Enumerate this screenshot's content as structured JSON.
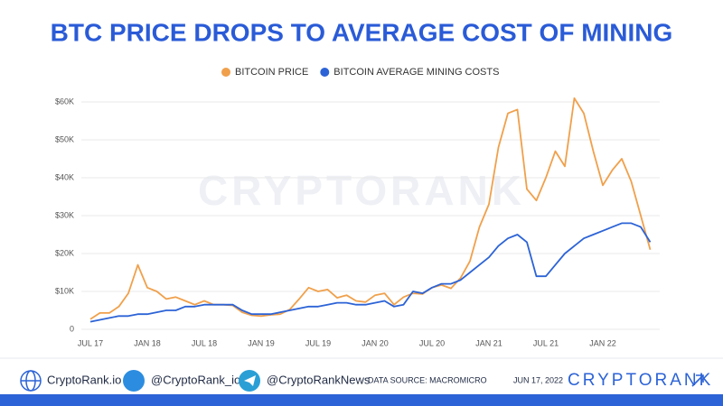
{
  "chart_data": {
    "type": "line",
    "title": "BTC PRICE DROPS TO AVERAGE COST OF MINING",
    "watermark": "CRYPTORANK",
    "x": [
      "2017-07",
      "2017-08",
      "2017-09",
      "2017-10",
      "2017-11",
      "2017-12",
      "2018-01",
      "2018-02",
      "2018-03",
      "2018-04",
      "2018-05",
      "2018-06",
      "2018-07",
      "2018-08",
      "2018-09",
      "2018-10",
      "2018-11",
      "2018-12",
      "2019-01",
      "2019-02",
      "2019-03",
      "2019-04",
      "2019-05",
      "2019-06",
      "2019-07",
      "2019-08",
      "2019-09",
      "2019-10",
      "2019-11",
      "2019-12",
      "2020-01",
      "2020-02",
      "2020-03",
      "2020-04",
      "2020-05",
      "2020-06",
      "2020-07",
      "2020-08",
      "2020-09",
      "2020-10",
      "2020-11",
      "2020-12",
      "2021-01",
      "2021-02",
      "2021-03",
      "2021-04",
      "2021-05",
      "2021-06",
      "2021-07",
      "2021-08",
      "2021-09",
      "2021-10",
      "2021-11",
      "2021-12",
      "2022-01",
      "2022-02",
      "2022-03",
      "2022-04",
      "2022-05",
      "2022-06"
    ],
    "series": [
      {
        "name": "BITCOIN PRICE",
        "color": "#f0a04b",
        "values": [
          2700,
          4300,
          4300,
          6000,
          9500,
          17000,
          11000,
          10000,
          8000,
          8500,
          7500,
          6500,
          7500,
          6500,
          6500,
          6300,
          4500,
          3700,
          3500,
          3800,
          4000,
          5200,
          8000,
          11000,
          10000,
          10500,
          8300,
          9000,
          7500,
          7200,
          9000,
          9500,
          6500,
          8500,
          9500,
          9300,
          11000,
          11700,
          10800,
          13500,
          18000,
          27000,
          33000,
          48000,
          57000,
          58000,
          37000,
          34000,
          40000,
          47000,
          43000,
          61000,
          57000,
          47000,
          38000,
          42000,
          45000,
          39000,
          30000,
          21000
        ]
      },
      {
        "name": "BITCOIN AVERAGE MINING COSTS",
        "color": "#2c63d6",
        "values": [
          2000,
          2500,
          3000,
          3500,
          3500,
          4000,
          4000,
          4500,
          5000,
          5000,
          6000,
          6000,
          6500,
          6500,
          6500,
          6500,
          5000,
          4000,
          4000,
          4000,
          4500,
          5000,
          5500,
          6000,
          6000,
          6500,
          7000,
          7000,
          6500,
          6500,
          7000,
          7500,
          6000,
          6500,
          10000,
          9500,
          11000,
          12000,
          12000,
          13000,
          15000,
          17000,
          19000,
          22000,
          24000,
          25000,
          23000,
          14000,
          14000,
          17000,
          20000,
          22000,
          24000,
          25000,
          26000,
          27000,
          28000,
          28000,
          27000,
          23000
        ]
      }
    ],
    "ylim": [
      0,
      65000
    ],
    "yticks": [
      0,
      {
        "value": 10000,
        "label": "$10K"
      },
      {
        "value": 20000,
        "label": "$20K"
      },
      {
        "value": 30000,
        "label": "$30K"
      },
      {
        "value": 40000,
        "label": "$40K"
      },
      {
        "value": 50000,
        "label": "$50K"
      },
      {
        "value": 60000,
        "label": "$60K"
      }
    ],
    "xticks": [
      {
        "value": "2017-07",
        "label": "JUL 17"
      },
      {
        "value": "2018-01",
        "label": "JAN 18"
      },
      {
        "value": "2018-07",
        "label": "JUL 18"
      },
      {
        "value": "2019-01",
        "label": "JAN 19"
      },
      {
        "value": "2019-07",
        "label": "JUL 19"
      },
      {
        "value": "2020-01",
        "label": "JAN 20"
      },
      {
        "value": "2020-07",
        "label": "JUL 20"
      },
      {
        "value": "2021-01",
        "label": "JAN 21"
      },
      {
        "value": "2021-07",
        "label": "JUL 21"
      },
      {
        "value": "2022-01",
        "label": "JAN 22"
      }
    ],
    "grid": true,
    "legend": "top"
  },
  "footer": {
    "website": "CryptoRank.io",
    "twitter": "@CryptoRank_io",
    "telegram": "@CryptoRankNews",
    "source": "DATA SOURCE: MACROMICRO",
    "date": "JUN 17, 2022",
    "logo": "CRYPTORANK"
  }
}
